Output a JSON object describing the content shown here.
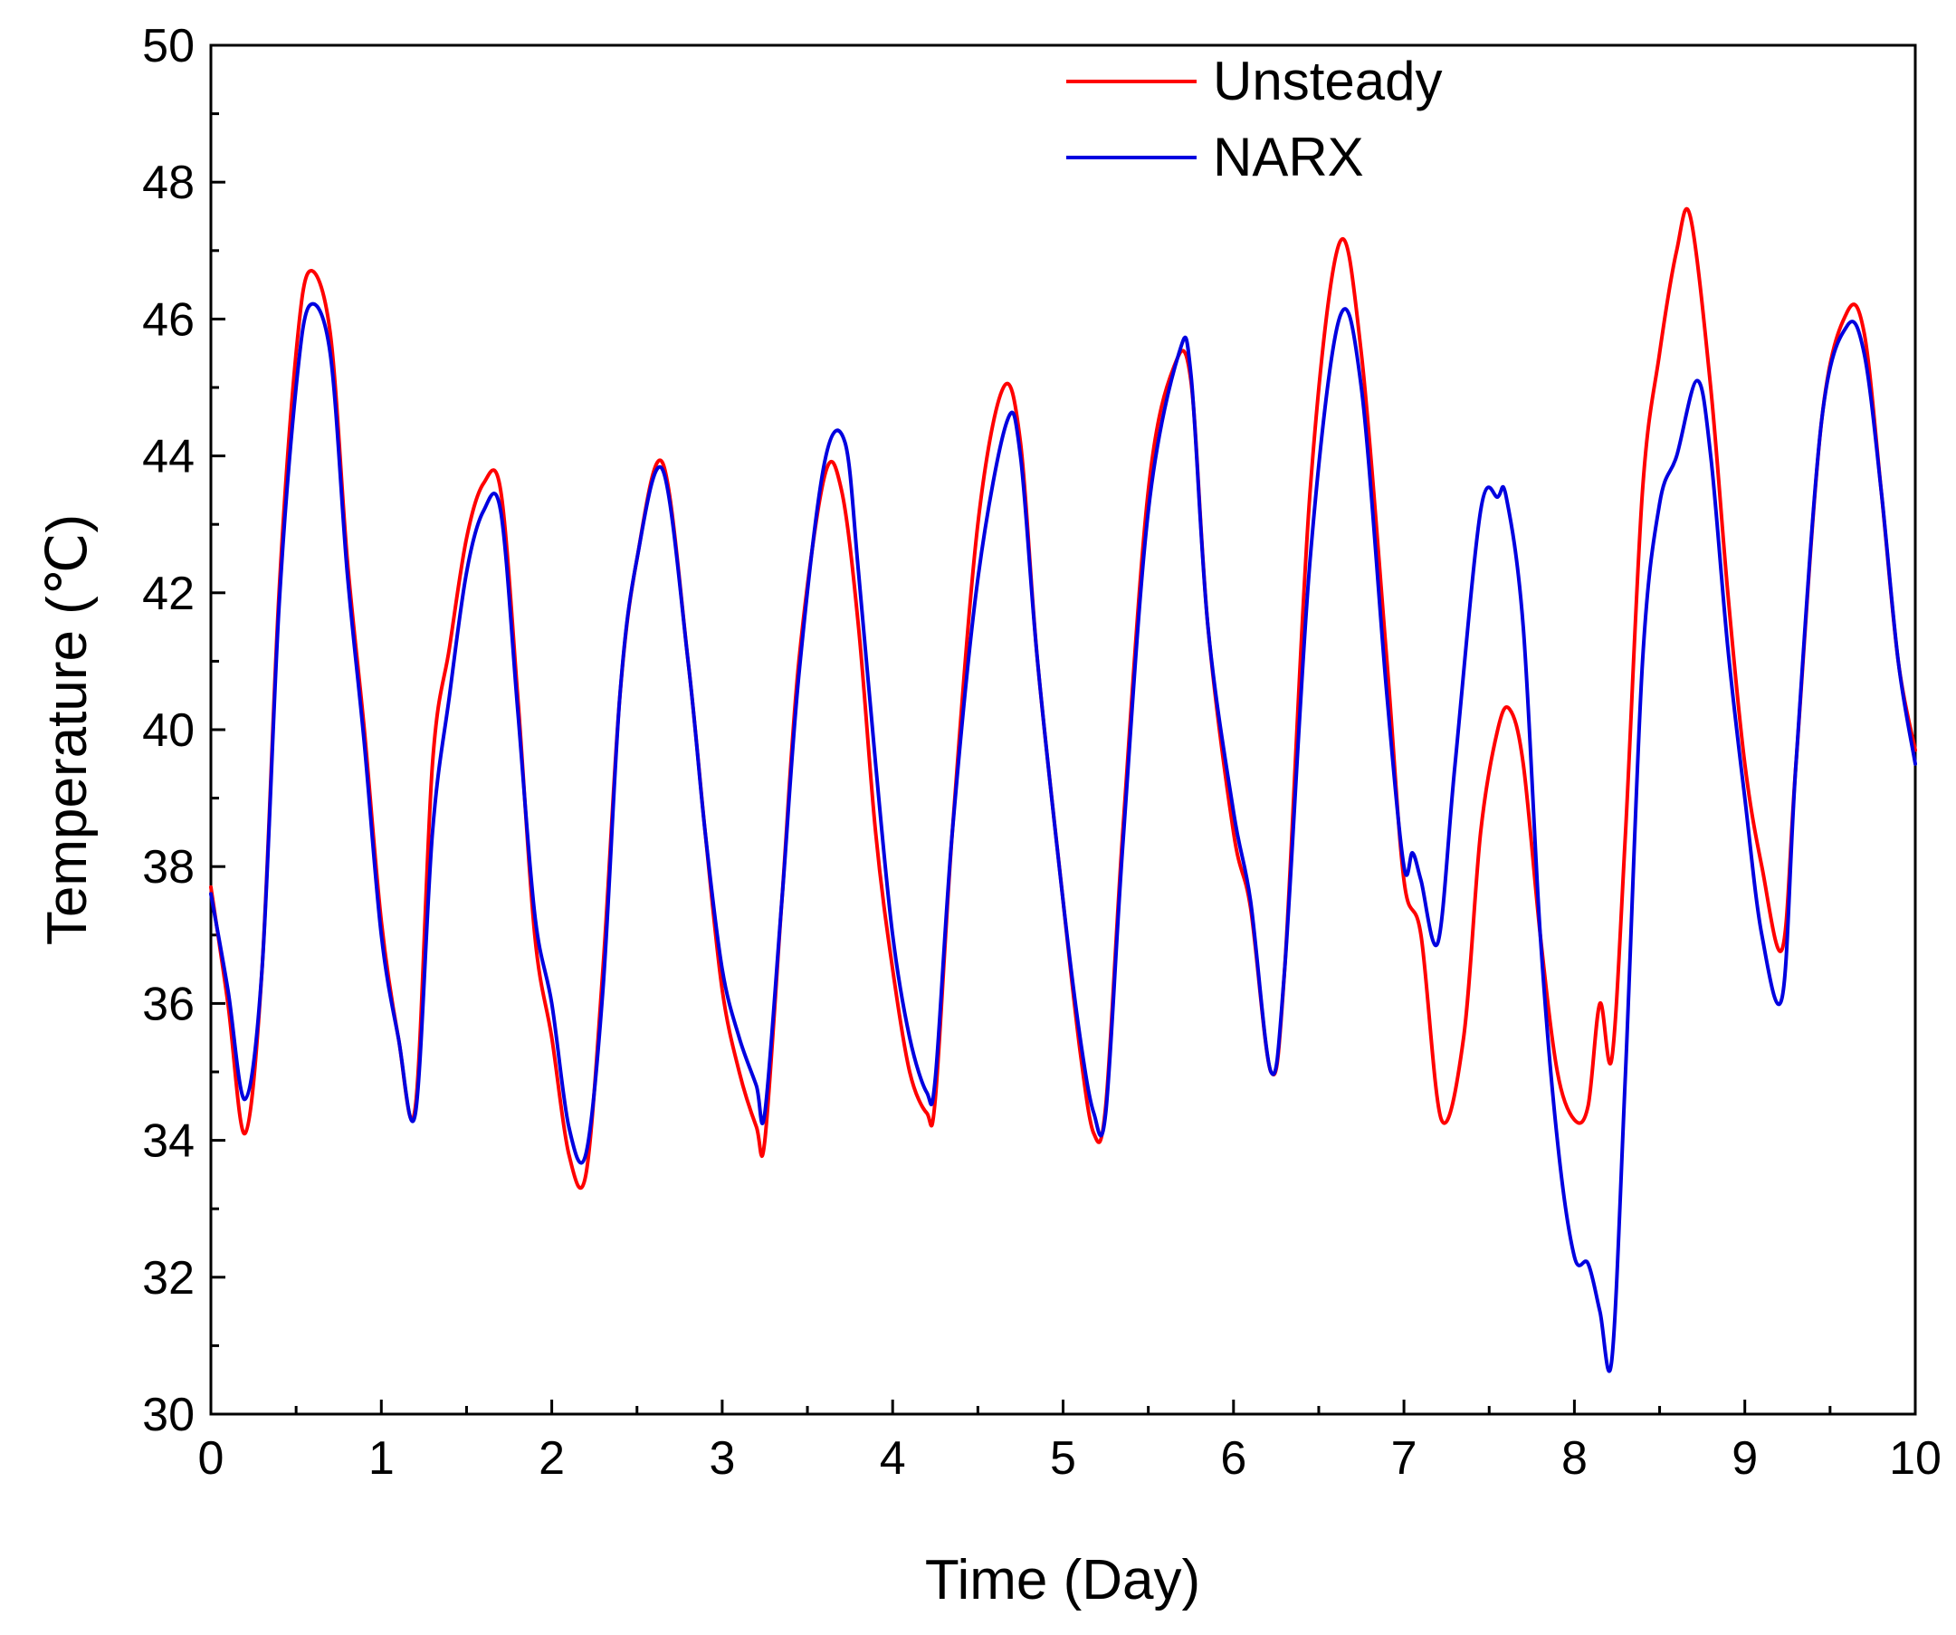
{
  "chart_data": {
    "type": "line",
    "title": "",
    "xlabel": "Time (Day)",
    "ylabel": "Temperature (℃)",
    "xlim": [
      0,
      10
    ],
    "ylim": [
      30,
      50
    ],
    "xticks": [
      0,
      1,
      2,
      3,
      4,
      5,
      6,
      7,
      8,
      9,
      10
    ],
    "xtick_labels": [
      "0",
      "1",
      "2",
      "3",
      "4",
      "5",
      "6",
      "7",
      "8",
      "9",
      "10"
    ],
    "yticks": [
      30,
      32,
      34,
      36,
      38,
      40,
      42,
      44,
      46,
      48,
      50
    ],
    "ytick_labels": [
      "30",
      "32",
      "34",
      "36",
      "38",
      "40",
      "42",
      "44",
      "46",
      "48",
      "50"
    ],
    "grid": false,
    "legend_position": "top-right",
    "series": [
      {
        "name": "Unsteady",
        "color": "#ff0000",
        "x": [
          0,
          0.1,
          0.2,
          0.3,
          0.4,
          0.5,
          0.58,
          0.7,
          0.8,
          0.9,
          1.0,
          1.1,
          1.2,
          1.3,
          1.4,
          1.5,
          1.6,
          1.7,
          1.8,
          1.9,
          2.0,
          2.1,
          2.2,
          2.3,
          2.4,
          2.5,
          2.65,
          2.8,
          2.9,
          3.0,
          3.1,
          3.2,
          3.25,
          3.35,
          3.45,
          3.6,
          3.7,
          3.8,
          3.9,
          4.0,
          4.1,
          4.2,
          4.25,
          4.35,
          4.5,
          4.65,
          4.75,
          4.85,
          5.0,
          5.1,
          5.18,
          5.25,
          5.35,
          5.5,
          5.65,
          5.75,
          5.85,
          6.0,
          6.1,
          6.22,
          6.3,
          6.45,
          6.62,
          6.75,
          6.9,
          7.0,
          7.1,
          7.22,
          7.35,
          7.45,
          7.55,
          7.62,
          7.7,
          7.8,
          7.9,
          8.0,
          8.08,
          8.15,
          8.22,
          8.3,
          8.4,
          8.5,
          8.6,
          8.68,
          8.8,
          8.9,
          9.0,
          9.1,
          9.22,
          9.3,
          9.45,
          9.6,
          9.7,
          9.8,
          9.9,
          10.0
        ],
        "y": [
          37.7,
          36,
          34.1,
          36.5,
          42,
          45.5,
          46.7,
          45.8,
          42.5,
          40,
          37.2,
          35.5,
          34.5,
          39.5,
          41.2,
          42.8,
          43.6,
          43.5,
          40.5,
          37,
          35.5,
          33.8,
          33.5,
          36.5,
          40.5,
          42.5,
          43.9,
          41,
          38.5,
          36.2,
          35,
          34.2,
          34,
          37.5,
          41,
          43.7,
          43.5,
          41.5,
          38.5,
          36.5,
          35,
          34.4,
          34.6,
          38.5,
          43,
          45,
          44.2,
          41,
          37.5,
          35.3,
          34.1,
          34.5,
          38.5,
          43.5,
          45.3,
          45.1,
          41.5,
          38.5,
          37.4,
          35,
          36.5,
          43.5,
          47.1,
          45.5,
          41,
          37.8,
          37,
          34.3,
          35.5,
          38.5,
          40,
          40.3,
          39.5,
          37,
          35,
          34.3,
          34.5,
          36,
          35.2,
          38.5,
          43.5,
          45.5,
          47,
          47.5,
          45,
          42,
          39.5,
          38,
          36.8,
          39.5,
          44.5,
          46.1,
          45.8,
          43.5,
          41,
          39.7
        ]
      },
      {
        "name": "NARX",
        "color": "#0000e0",
        "x": [
          0,
          0.1,
          0.2,
          0.3,
          0.4,
          0.5,
          0.58,
          0.7,
          0.8,
          0.9,
          1.0,
          1.1,
          1.2,
          1.3,
          1.4,
          1.5,
          1.6,
          1.7,
          1.8,
          1.9,
          2.0,
          2.1,
          2.2,
          2.3,
          2.4,
          2.5,
          2.65,
          2.8,
          2.9,
          3.0,
          3.1,
          3.2,
          3.25,
          3.35,
          3.45,
          3.6,
          3.72,
          3.8,
          3.9,
          4.0,
          4.1,
          4.2,
          4.25,
          4.35,
          4.5,
          4.67,
          4.75,
          4.85,
          5.0,
          5.1,
          5.18,
          5.25,
          5.35,
          5.5,
          5.68,
          5.75,
          5.85,
          6.0,
          6.1,
          6.22,
          6.3,
          6.45,
          6.62,
          6.75,
          6.9,
          7.0,
          7.05,
          7.1,
          7.2,
          7.3,
          7.45,
          7.55,
          7.6,
          7.7,
          7.8,
          7.9,
          8.0,
          8.08,
          8.15,
          8.22,
          8.3,
          8.4,
          8.5,
          8.6,
          8.72,
          8.8,
          8.9,
          9.0,
          9.1,
          9.22,
          9.3,
          9.45,
          9.6,
          9.7,
          9.8,
          9.9,
          10.0
        ],
        "y": [
          37.6,
          36.2,
          34.6,
          36.5,
          41.8,
          45,
          46.2,
          45.5,
          42.3,
          39.8,
          37,
          35.5,
          34.4,
          38.5,
          40.5,
          42.3,
          43.2,
          43.2,
          40.3,
          37.3,
          36,
          34.2,
          33.8,
          36.2,
          40.5,
          42.5,
          43.8,
          41,
          38.5,
          36.5,
          35.5,
          34.8,
          34.4,
          37.5,
          40.8,
          43.9,
          44.2,
          42.3,
          39.5,
          37,
          35.5,
          34.7,
          34.9,
          38.5,
          42.2,
          44.5,
          44,
          41,
          37.5,
          35.5,
          34.4,
          34.4,
          38.3,
          43.2,
          45.5,
          45.2,
          41.5,
          38.8,
          37.5,
          35,
          36.5,
          42.5,
          46,
          45,
          40.5,
          38,
          38.2,
          37.8,
          36.9,
          39.5,
          43.2,
          43.4,
          43.4,
          41.5,
          37,
          34,
          32.3,
          32.2,
          31.5,
          30.8,
          35,
          41,
          43.3,
          44,
          45.1,
          44,
          41.2,
          39,
          37,
          36.1,
          39.5,
          44.5,
          45.9,
          45.5,
          43.5,
          41,
          39.5
        ]
      }
    ]
  }
}
